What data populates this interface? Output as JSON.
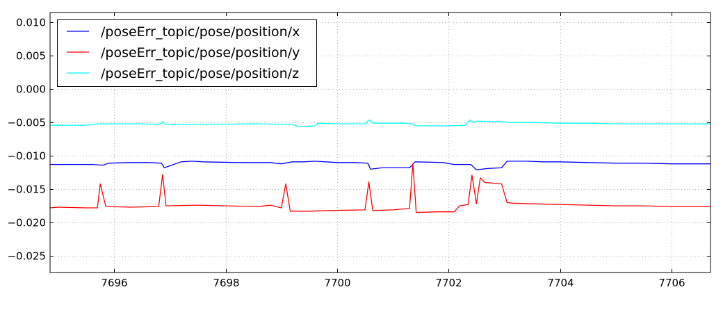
{
  "chart_data": {
    "type": "line",
    "title": "",
    "xlabel": "",
    "ylabel": "",
    "xlim": [
      7694.85,
      7706.7
    ],
    "ylim": [
      -0.0275,
      0.0115
    ],
    "xticks": [
      7696,
      7698,
      7700,
      7702,
      7704,
      7706
    ],
    "xtick_labels": [
      "7696",
      "7698",
      "7700",
      "7702",
      "7704",
      "7706"
    ],
    "yticks": [
      0.01,
      0.005,
      0.0,
      -0.005,
      -0.01,
      -0.015,
      -0.02,
      -0.025
    ],
    "ytick_labels": [
      "0.010",
      "0.005",
      "0.000",
      "−0.005",
      "−0.010",
      "−0.015",
      "−0.020",
      "−0.025"
    ],
    "grid": true,
    "legend_position": "top-left",
    "series": [
      {
        "name": "/poseErr_topic/pose/position/x",
        "color": "#0000ff",
        "x": [
          7694.85,
          7695.3,
          7695.6,
          7695.8,
          7695.9,
          7696.3,
          7696.6,
          7696.85,
          7696.9,
          7697.2,
          7697.4,
          7697.6,
          7698.2,
          7698.8,
          7699.0,
          7699.2,
          7699.4,
          7699.6,
          7699.8,
          7700.0,
          7700.3,
          7700.55,
          7700.6,
          7700.8,
          7701.3,
          7701.4,
          7701.9,
          7702.1,
          7702.4,
          7702.5,
          7702.7,
          7702.95,
          7703.05,
          7703.4,
          7703.7,
          7704.0,
          7704.5,
          7705.0,
          7705.5,
          7706.0,
          7706.7
        ],
        "values": [
          -0.0113,
          -0.0113,
          -0.0113,
          -0.0114,
          -0.0111,
          -0.011,
          -0.011,
          -0.0111,
          -0.0118,
          -0.0109,
          -0.0108,
          -0.0109,
          -0.011,
          -0.011,
          -0.0112,
          -0.0109,
          -0.0109,
          -0.0108,
          -0.0109,
          -0.011,
          -0.011,
          -0.0111,
          -0.012,
          -0.0118,
          -0.0118,
          -0.0109,
          -0.011,
          -0.0113,
          -0.0113,
          -0.0121,
          -0.0119,
          -0.0118,
          -0.0108,
          -0.0108,
          -0.0109,
          -0.0109,
          -0.011,
          -0.0111,
          -0.0111,
          -0.0112,
          -0.0112
        ]
      },
      {
        "name": "/poseErr_topic/pose/position/y",
        "color": "#ff0000",
        "x": [
          7694.85,
          7695.0,
          7695.5,
          7695.7,
          7695.75,
          7695.85,
          7696.3,
          7696.8,
          7696.87,
          7696.93,
          7697.5,
          7698.0,
          7698.6,
          7698.8,
          7699.0,
          7699.08,
          7699.16,
          7699.5,
          7699.9,
          7700.5,
          7700.57,
          7700.64,
          7701.0,
          7701.3,
          7701.36,
          7701.42,
          7701.8,
          7702.1,
          7702.2,
          7702.35,
          7702.42,
          7702.5,
          7702.57,
          7702.65,
          7702.95,
          7703.05,
          7703.15,
          7703.5,
          7704.5,
          7705.0,
          7705.5,
          7706.0,
          7706.7
        ],
        "values": [
          -0.0178,
          -0.0177,
          -0.0178,
          -0.0178,
          -0.0142,
          -0.0176,
          -0.0177,
          -0.0176,
          -0.0128,
          -0.0175,
          -0.0174,
          -0.0175,
          -0.0176,
          -0.0174,
          -0.0178,
          -0.0142,
          -0.0183,
          -0.0183,
          -0.0182,
          -0.0181,
          -0.0139,
          -0.0182,
          -0.0181,
          -0.0179,
          -0.0112,
          -0.0185,
          -0.0184,
          -0.0184,
          -0.0175,
          -0.0173,
          -0.0129,
          -0.0172,
          -0.0133,
          -0.014,
          -0.0142,
          -0.017,
          -0.0171,
          -0.0172,
          -0.0174,
          -0.0175,
          -0.0175,
          -0.0176,
          -0.0176
        ]
      },
      {
        "name": "/poseErr_topic/pose/position/z",
        "color": "#00ffff",
        "x": [
          7694.85,
          7695.5,
          7695.7,
          7696.5,
          7696.8,
          7696.87,
          7696.93,
          7697.5,
          7698.5,
          7699.2,
          7699.3,
          7699.6,
          7699.65,
          7700.0,
          7700.5,
          7700.58,
          7700.65,
          7701.2,
          7701.35,
          7701.4,
          7702.0,
          7702.3,
          7702.38,
          7702.45,
          7702.5,
          7703.0,
          7703.1,
          7703.5,
          7704.0,
          7704.5,
          7705.0,
          7705.5,
          7706.0,
          7706.7
        ],
        "values": [
          -0.0054,
          -0.0054,
          -0.0052,
          -0.0052,
          -0.0053,
          -0.0049,
          -0.0053,
          -0.0053,
          -0.0052,
          -0.0053,
          -0.0056,
          -0.0055,
          -0.0051,
          -0.0052,
          -0.0052,
          -0.0046,
          -0.0051,
          -0.0051,
          -0.0052,
          -0.0055,
          -0.0055,
          -0.0054,
          -0.0046,
          -0.005,
          -0.0048,
          -0.0049,
          -0.005,
          -0.005,
          -0.0051,
          -0.0051,
          -0.0052,
          -0.0052,
          -0.0052,
          -0.0052
        ]
      }
    ]
  }
}
